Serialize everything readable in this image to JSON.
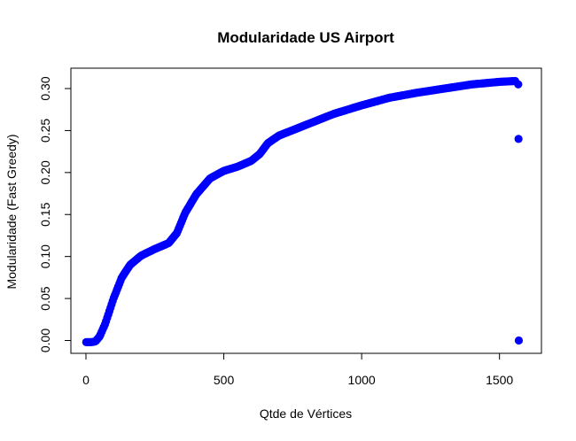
{
  "chart_data": {
    "type": "scatter",
    "title": "Modularidade US Airport",
    "xlabel": "Qtde de Vértices",
    "ylabel": "Modularidade (Fast Greedy)",
    "xlim": [
      0,
      1575
    ],
    "ylim": [
      -0.003,
      0.31
    ],
    "x_ticks": [
      {
        "value": 0,
        "label": "0"
      },
      {
        "value": 500,
        "label": "500"
      },
      {
        "value": 1000,
        "label": "1000"
      },
      {
        "value": 1500,
        "label": "1500"
      }
    ],
    "y_ticks": [
      {
        "value": 0.0,
        "label": "0.00"
      },
      {
        "value": 0.05,
        "label": "0.05"
      },
      {
        "value": 0.1,
        "label": "0.10"
      },
      {
        "value": 0.15,
        "label": "0.15"
      },
      {
        "value": 0.2,
        "label": "0.20"
      },
      {
        "value": 0.25,
        "label": "0.25"
      },
      {
        "value": 0.3,
        "label": "0.30"
      }
    ],
    "grid": false,
    "point_color": "#0000ff",
    "curve_keypoints": {
      "x": [
        1,
        20,
        35,
        50,
        70,
        100,
        130,
        160,
        200,
        250,
        300,
        330,
        360,
        400,
        450,
        500,
        550,
        600,
        630,
        660,
        700,
        800,
        900,
        1000,
        1100,
        1200,
        1300,
        1400,
        1500,
        1560
      ],
      "y": [
        -0.002,
        -0.002,
        -0.001,
        0.005,
        0.02,
        0.05,
        0.075,
        0.09,
        0.101,
        0.109,
        0.116,
        0.128,
        0.152,
        0.174,
        0.193,
        0.202,
        0.207,
        0.214,
        0.222,
        0.235,
        0.244,
        0.257,
        0.27,
        0.28,
        0.289,
        0.295,
        0.3,
        0.305,
        0.308,
        0.309
      ]
    },
    "outliers": [
      {
        "x": 1568,
        "y": 0.305
      },
      {
        "x": 1569,
        "y": 0.24
      },
      {
        "x": 1570,
        "y": 0.0
      }
    ]
  }
}
